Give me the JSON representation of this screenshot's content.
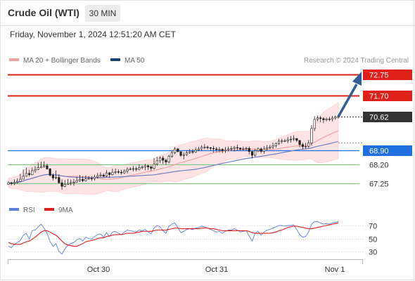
{
  "header": {
    "title": "Crude Oil (WTI)",
    "timeframe": "30 MIN"
  },
  "datetime": "Friday, November 1, 2024 12:51:20 AM CET",
  "legend": {
    "ma20_label": "MA 20 + Bollinger Bands",
    "ma50_label": "MA 50",
    "credit": "Research © 2024 Trading Central"
  },
  "rsi_legend": {
    "rsi_label": "RSI",
    "ma_label": "9MA"
  },
  "colors": {
    "resistance": "#e0201b",
    "current": "#333333",
    "support": "#1f6fe0",
    "support_line": "#7ec57e",
    "ma20": "#f4a3a3",
    "ma50": "#6f7fc6",
    "bollinger": "#fde3e3",
    "arrow": "#2f5f9a",
    "rsi": "#5b7fe0",
    "rsi_ma": "#e02020"
  },
  "chart_data": [
    {
      "type": "candlestick",
      "x_ticks": [
        "Oct 30",
        "Oct 31",
        "Nov 1"
      ],
      "levels": [
        {
          "label": "72.75",
          "value": 72.75,
          "kind": "resistance"
        },
        {
          "label": "71.70",
          "value": 71.7,
          "kind": "resistance"
        },
        {
          "label": "70.62",
          "value": 70.62,
          "kind": "current"
        },
        {
          "label": "68.90",
          "value": 68.9,
          "kind": "pivot"
        },
        {
          "label": "68.20",
          "value": 68.2,
          "kind": "support"
        },
        {
          "label": "67.25",
          "value": 67.25,
          "kind": "support"
        }
      ],
      "ylim": [
        66.8,
        73.2
      ],
      "close": [
        67.28,
        67.24,
        67.3,
        67.35,
        67.46,
        67.61,
        67.75,
        67.69,
        67.89,
        67.95,
        68.04,
        68.1,
        68.14,
        67.98,
        67.66,
        67.52,
        67.55,
        67.28,
        67.1,
        67.2,
        67.25,
        67.29,
        67.31,
        67.39,
        67.45,
        67.38,
        67.47,
        67.5,
        67.49,
        67.57,
        67.64,
        67.67,
        67.61,
        67.78,
        67.69,
        67.81,
        67.84,
        67.81,
        67.78,
        67.87,
        67.96,
        67.98,
        67.99,
        67.96,
        68.04,
        68.07,
        68.14,
        68.08,
        68.01,
        68.22,
        68.39,
        68.53,
        68.42,
        68.33,
        68.61,
        68.8,
        68.99,
        68.85,
        68.66,
        68.7,
        68.8,
        68.85,
        68.84,
        68.93,
        68.99,
        69.07,
        69.08,
        69.05,
        69.02,
        68.99,
        68.95,
        68.97,
        68.9,
        68.95,
        68.99,
        69.01,
        69.06,
        69.04,
        68.98,
        68.99,
        69.02,
        68.86,
        68.67,
        68.9,
        68.99,
        68.86,
        68.99,
        69.05,
        69.09,
        69.15,
        69.26,
        69.38,
        69.4,
        69.4,
        69.45,
        69.48,
        69.52,
        69.42,
        69.21,
        69.1,
        69.12,
        69.29,
        70.02,
        70.48,
        70.56,
        70.52,
        70.46,
        70.5,
        70.48,
        70.55,
        70.6,
        70.62
      ],
      "high": [
        67.36,
        67.33,
        67.45,
        67.5,
        67.73,
        67.95,
        68.04,
        67.92,
        68.05,
        68.12,
        68.3,
        68.35,
        68.36,
        68.24,
        68.02,
        67.75,
        67.9,
        67.71,
        67.45,
        67.42,
        67.47,
        67.45,
        67.47,
        67.58,
        67.67,
        67.62,
        67.65,
        67.61,
        67.61,
        67.69,
        67.78,
        67.81,
        67.75,
        67.92,
        67.82,
        67.99,
        68.0,
        67.95,
        67.94,
        67.96,
        68.06,
        68.07,
        68.13,
        68.09,
        68.22,
        68.15,
        68.24,
        68.2,
        68.16,
        68.53,
        68.59,
        68.61,
        68.63,
        68.5,
        68.69,
        68.89,
        69.08,
        69.03,
        68.8,
        68.82,
        68.92,
        68.99,
        68.99,
        69.07,
        69.1,
        69.17,
        69.24,
        69.16,
        69.09,
        69.14,
        69.09,
        69.08,
        69.02,
        69.08,
        69.11,
        69.13,
        69.14,
        69.21,
        69.04,
        69.11,
        69.1,
        69.11,
        68.77,
        69.0,
        69.07,
        69.06,
        69.13,
        69.18,
        69.19,
        69.31,
        69.33,
        69.49,
        69.5,
        69.49,
        69.59,
        69.63,
        69.68,
        69.48,
        69.34,
        69.3,
        69.3,
        69.44,
        70.19,
        70.64,
        70.67,
        70.65,
        70.59,
        70.57,
        70.61,
        70.66,
        70.68,
        70.72
      ],
      "low": [
        67.19,
        67.15,
        67.16,
        67.23,
        67.41,
        67.52,
        67.59,
        67.6,
        67.66,
        67.78,
        67.92,
        68.01,
        68.03,
        67.95,
        67.6,
        67.4,
        67.46,
        67.24,
        66.93,
        67.06,
        67.17,
        67.15,
        67.13,
        67.3,
        67.32,
        67.31,
        67.36,
        67.43,
        67.37,
        67.39,
        67.49,
        67.57,
        67.56,
        67.55,
        67.53,
        67.65,
        67.71,
        67.73,
        67.69,
        67.72,
        67.76,
        67.91,
        67.85,
        67.85,
        67.91,
        67.96,
        67.91,
        67.92,
        67.88,
        67.94,
        68.14,
        68.27,
        68.23,
        68.19,
        68.26,
        68.54,
        68.73,
        68.82,
        68.59,
        68.46,
        68.64,
        68.74,
        68.73,
        68.79,
        68.87,
        68.89,
        68.97,
        68.96,
        68.91,
        68.81,
        68.83,
        68.83,
        68.78,
        68.79,
        68.86,
        68.88,
        68.86,
        68.91,
        68.92,
        68.89,
        68.89,
        68.72,
        68.52,
        68.6,
        68.82,
        68.76,
        68.75,
        68.91,
        68.98,
        68.99,
        69.05,
        69.19,
        69.26,
        69.33,
        69.28,
        69.31,
        69.39,
        69.33,
        69.07,
        68.96,
        69.0,
        69.04,
        69.15,
        69.89,
        70.38,
        70.34,
        70.29,
        70.38,
        70.39,
        70.38,
        70.47,
        70.52
      ],
      "open_offset": [
        -0.08,
        0.04,
        -0.06,
        -0.05,
        -0.11,
        -0.15,
        -0.14,
        0.06,
        -0.2,
        -0.06,
        -0.09,
        -0.06,
        -0.04,
        0.16,
        0.32,
        0.14,
        -0.03,
        0.27,
        0.18,
        -0.1,
        -0.05,
        -0.04,
        -0.02,
        -0.08,
        -0.06,
        0.07,
        -0.09,
        -0.03,
        0.01,
        -0.08,
        -0.07,
        -0.03,
        0.06,
        -0.17,
        0.09,
        -0.12,
        -0.03,
        0.03,
        0.03,
        -0.09,
        -0.09,
        -0.02,
        -0.01,
        0.03,
        -0.08,
        -0.03,
        -0.07,
        0.06,
        0.07,
        -0.21,
        -0.17,
        -0.14,
        0.11,
        0.09,
        -0.28,
        -0.19,
        -0.19,
        0.14,
        0.19,
        -0.04,
        -0.1,
        -0.05,
        0.01,
        -0.09,
        -0.06,
        -0.08,
        -0.01,
        0.03,
        0.03,
        0.03,
        0.04,
        -0.02,
        0.07,
        -0.05,
        -0.04,
        -0.02,
        -0.05,
        0.02,
        0.06,
        -0.01,
        -0.03,
        0.16,
        0.19,
        -0.23,
        -0.09,
        0.13,
        -0.13,
        -0.06,
        -0.04,
        -0.06,
        -0.11,
        -0.12,
        -0.02,
        0.0,
        -0.05,
        -0.03,
        -0.04,
        0.1,
        0.21,
        0.11,
        -0.02,
        -0.17,
        -0.73,
        -0.46,
        -0.08,
        0.04,
        0.06,
        -0.04,
        0.02,
        -0.07,
        -0.05,
        -0.02
      ]
    },
    {
      "type": "line",
      "name": "RSI",
      "y_ticks": [
        "70",
        "50",
        "30"
      ],
      "ylim": [
        20,
        80
      ],
      "series": [
        {
          "name": "RSI",
          "values": [
            38,
            36,
            41,
            44,
            47,
            55,
            58,
            49,
            62,
            63,
            68,
            72,
            66,
            58,
            45,
            38,
            42,
            30,
            26,
            34,
            40,
            42,
            44,
            48,
            50,
            46,
            52,
            50,
            49,
            53,
            56,
            57,
            52,
            59,
            53,
            60,
            61,
            58,
            56,
            60,
            63,
            62,
            61,
            60,
            63,
            62,
            64,
            60,
            57,
            66,
            70,
            68,
            62,
            58,
            69,
            72,
            74,
            67,
            59,
            61,
            64,
            65,
            64,
            66,
            67,
            69,
            68,
            66,
            64,
            62,
            60,
            61,
            58,
            61,
            63,
            63,
            65,
            63,
            60,
            61,
            62,
            54,
            46,
            58,
            61,
            55,
            60,
            63,
            64,
            66,
            68,
            70,
            70,
            69,
            70,
            70,
            71,
            64,
            56,
            52,
            53,
            60,
            72,
            76,
            76,
            74,
            72,
            73,
            72,
            74,
            75,
            76
          ]
        },
        {
          "name": "9MA",
          "values": [
            44,
            42,
            41,
            41,
            41,
            43,
            45,
            46,
            49,
            52,
            56,
            60,
            62,
            62,
            60,
            57,
            55,
            51,
            46,
            42,
            40,
            39,
            38,
            38,
            40,
            42,
            45,
            46,
            47,
            48,
            50,
            51,
            51,
            53,
            54,
            55,
            56,
            56,
            56,
            57,
            58,
            58,
            58,
            59,
            60,
            61,
            61,
            61,
            61,
            62,
            63,
            63,
            63,
            63,
            64,
            65,
            66,
            66,
            65,
            65,
            65,
            65,
            65,
            65,
            65,
            66,
            66,
            66,
            65,
            65,
            64,
            63,
            62,
            62,
            62,
            62,
            62,
            62,
            62,
            62,
            62,
            61,
            59,
            58,
            58,
            58,
            58,
            58,
            58,
            59,
            60,
            62,
            63,
            65,
            67,
            68,
            69,
            69,
            68,
            67,
            66,
            65,
            65,
            66,
            67,
            68,
            69,
            70,
            71,
            72,
            73,
            74
          ]
        }
      ]
    }
  ]
}
